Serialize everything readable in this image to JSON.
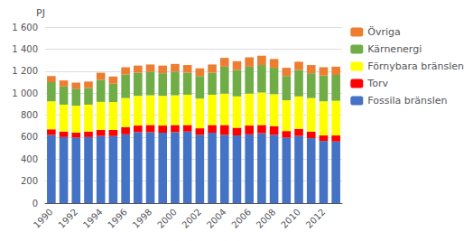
{
  "chart_data": {
    "type": "bar",
    "stacked": true,
    "ylabel": "PJ",
    "categories": [
      "1990",
      null,
      "1992",
      null,
      "1994",
      null,
      "1996",
      null,
      "1998",
      null,
      "2000",
      null,
      "2002",
      null,
      "2004",
      null,
      "2006",
      null,
      "2008",
      null,
      "2010",
      null,
      "2012",
      null
    ],
    "series": [
      {
        "name": "Fossila bränslen",
        "color": "#4472C4",
        "values": [
          620,
          600,
          595,
          600,
          610,
          610,
          625,
          645,
          645,
          640,
          645,
          650,
          620,
          640,
          620,
          615,
          625,
          635,
          620,
          595,
          610,
          590,
          565,
          560
        ]
      },
      {
        "name": "Torv",
        "color": "#FF0000",
        "values": [
          50,
          50,
          45,
          50,
          55,
          55,
          65,
          60,
          65,
          65,
          65,
          60,
          60,
          70,
          90,
          70,
          80,
          75,
          80,
          60,
          65,
          60,
          50,
          55
        ]
      },
      {
        "name": "Förnybara bränslen",
        "color": "#FFFF00",
        "values": [
          255,
          245,
          245,
          245,
          255,
          255,
          265,
          270,
          270,
          270,
          270,
          275,
          270,
          275,
          285,
          285,
          290,
          295,
          290,
          280,
          295,
          305,
          310,
          315
        ]
      },
      {
        "name": "Kärnenergi",
        "color": "#70AD47",
        "values": [
          175,
          165,
          155,
          150,
          200,
          165,
          215,
          210,
          215,
          205,
          215,
          200,
          205,
          200,
          245,
          240,
          245,
          250,
          240,
          220,
          240,
          225,
          235,
          235
        ]
      },
      {
        "name": "Övriga",
        "color": "#ED7D31",
        "values": [
          55,
          55,
          55,
          60,
          65,
          65,
          65,
          65,
          65,
          70,
          70,
          70,
          70,
          75,
          80,
          80,
          85,
          85,
          80,
          75,
          75,
          75,
          75,
          75
        ]
      }
    ],
    "ylim": [
      0,
      1600
    ],
    "yticks": [
      0,
      200,
      400,
      600,
      800,
      {
        "value": 1000,
        "label": "1 000"
      },
      {
        "value": 1200,
        "label": "1 200"
      },
      {
        "value": 1400,
        "label": "1 400"
      },
      {
        "value": 1600,
        "label": "1 600"
      }
    ],
    "grid": true,
    "legend": "upper right"
  }
}
